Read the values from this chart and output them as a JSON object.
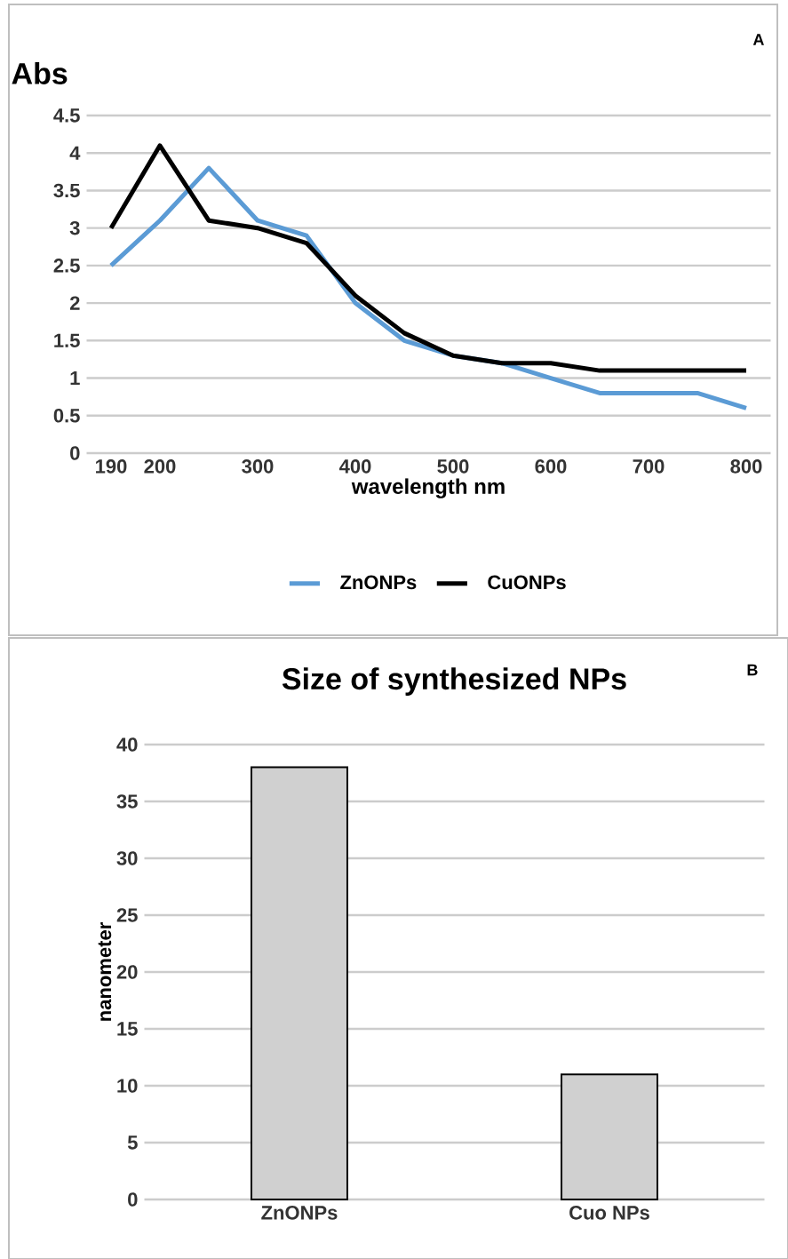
{
  "chart_data": [
    {
      "type": "line",
      "ylabel": "Abs",
      "xlabel": "wavelength nm",
      "categories": [
        "190",
        "200",
        null,
        "300",
        null,
        "400",
        null,
        "500",
        null,
        "600",
        null,
        "700",
        null,
        "800"
      ],
      "series": [
        {
          "name": "ZnONPs",
          "color": "#5b9bd5",
          "values": [
            2.5,
            3.1,
            3.8,
            3.1,
            2.9,
            2.0,
            1.5,
            1.3,
            1.2,
            1.0,
            0.8,
            0.8,
            0.8,
            0.6
          ]
        },
        {
          "name": "CuONPs",
          "color": "#000000",
          "values": [
            3.0,
            4.1,
            3.1,
            3.0,
            2.8,
            2.1,
            1.6,
            1.3,
            1.2,
            1.2,
            1.1,
            1.1,
            1.1,
            1.1
          ]
        }
      ],
      "ylim": [
        0,
        4.5
      ],
      "yticks": [
        0,
        0.5,
        1,
        1.5,
        2,
        2.5,
        3,
        3.5,
        4,
        4.5
      ],
      "grid": "y",
      "legend": "bottom",
      "marker": "none",
      "annotations": [
        "A"
      ]
    },
    {
      "type": "bar",
      "title": "Size of synthesized NPs",
      "ylabel": "nanometer",
      "categories": [
        "ZnONPs",
        "Cuo NPs"
      ],
      "values": [
        38,
        11
      ],
      "color": "#d0d0d0",
      "ylim": [
        0,
        40
      ],
      "yticks": [
        0,
        5,
        10,
        15,
        20,
        25,
        30,
        35,
        40
      ],
      "grid": "y",
      "annotations": [
        "B"
      ]
    }
  ]
}
